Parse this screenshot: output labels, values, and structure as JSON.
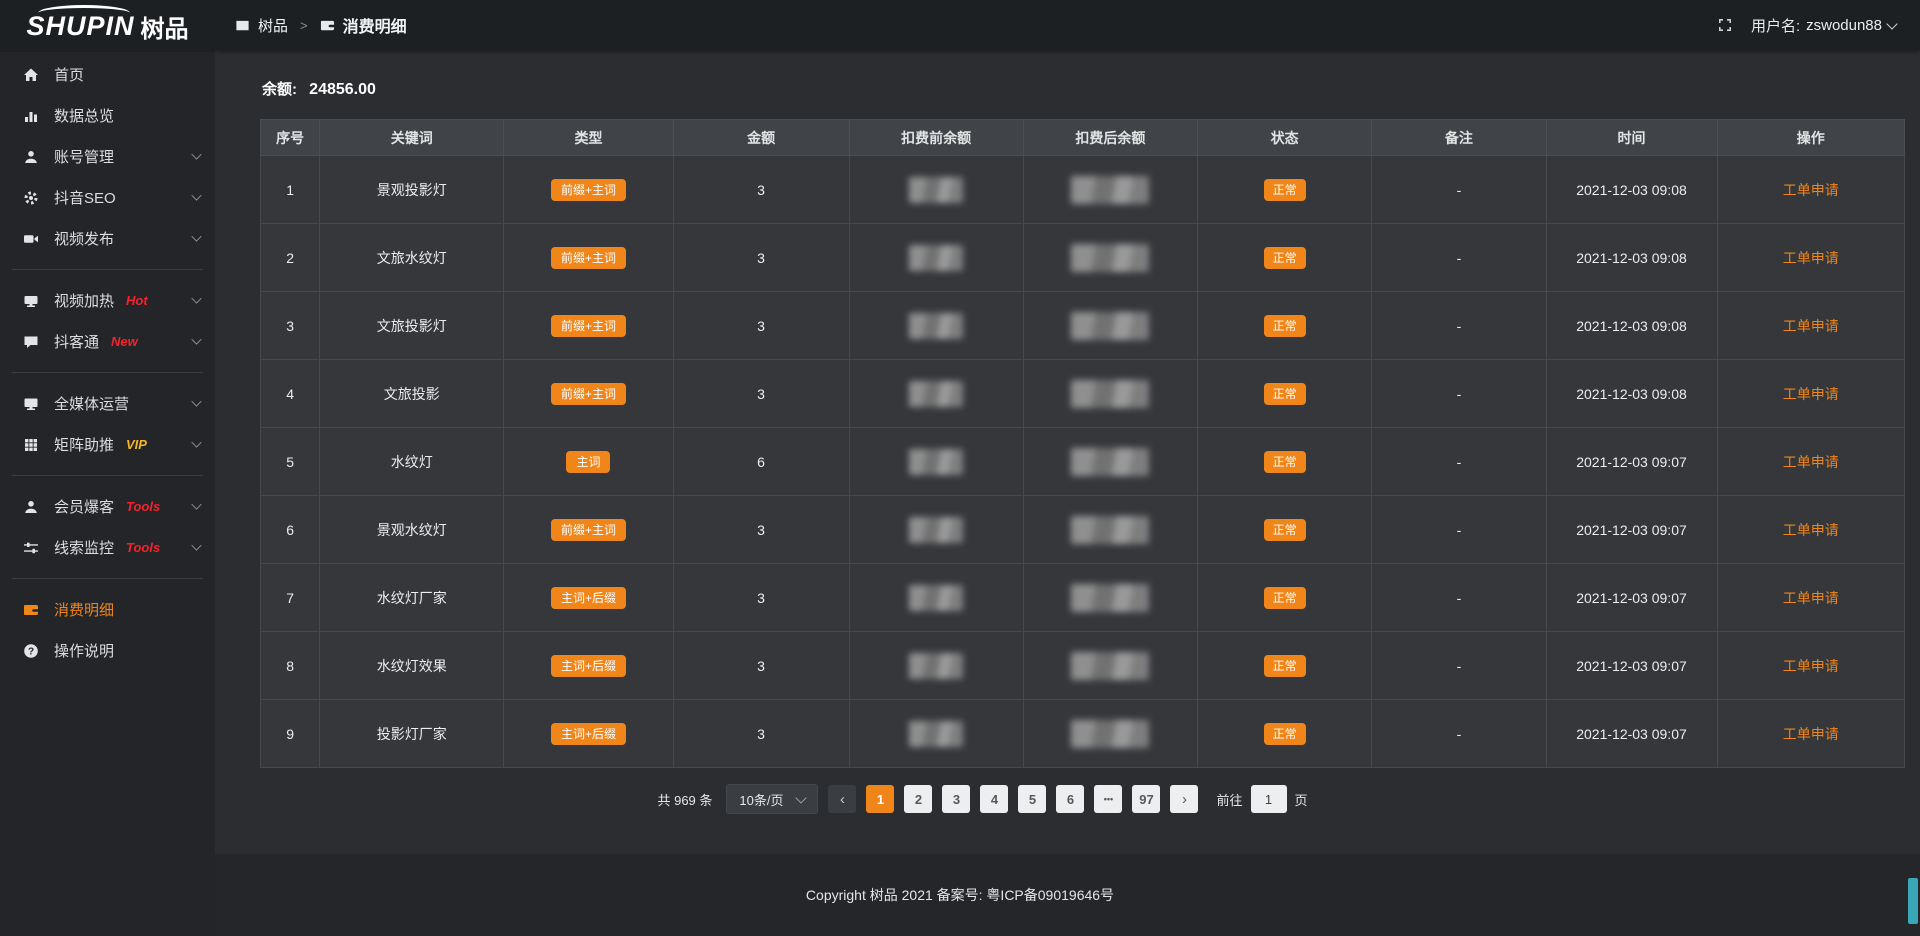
{
  "colors": {
    "accent": "#f08519",
    "hot": "#f5222d",
    "vip": "#f7b52c",
    "sidebar_bg": "#232528"
  },
  "sidebar": {
    "logo_en": "SHUPIN",
    "logo_cn": "树品",
    "items": [
      {
        "id": "home",
        "label": "首页",
        "icon": "home-icon",
        "chevron": false,
        "badge": null,
        "badge_color": null,
        "active": false,
        "divider_after": false
      },
      {
        "id": "data-overview",
        "label": "数据总览",
        "icon": "chart-icon",
        "chevron": false,
        "badge": null,
        "badge_color": null,
        "active": false,
        "divider_after": false
      },
      {
        "id": "account-management",
        "label": "账号管理",
        "icon": "user-icon",
        "chevron": true,
        "badge": null,
        "badge_color": null,
        "active": false,
        "divider_after": false
      },
      {
        "id": "douyin-seo",
        "label": "抖音SEO",
        "icon": "gear-icon",
        "chevron": true,
        "badge": null,
        "badge_color": null,
        "active": false,
        "divider_after": false
      },
      {
        "id": "video-publish",
        "label": "视频发布",
        "icon": "video-icon",
        "chevron": true,
        "badge": null,
        "badge_color": null,
        "active": false,
        "divider_after": true
      },
      {
        "id": "video-heating",
        "label": "视频加热",
        "icon": "screen-icon",
        "chevron": true,
        "badge": "Hot",
        "badge_color": "#f5222d",
        "active": false,
        "divider_after": false
      },
      {
        "id": "doukertong",
        "label": "抖客通",
        "icon": "comment-icon",
        "chevron": true,
        "badge": "New",
        "badge_color": "#f5222d",
        "active": false,
        "divider_after": true
      },
      {
        "id": "omni-media",
        "label": "全媒体运营",
        "icon": "monitor-icon",
        "chevron": true,
        "badge": null,
        "badge_color": null,
        "active": false,
        "divider_after": false
      },
      {
        "id": "matrix-boost",
        "label": "矩阵助推",
        "icon": "grid-icon",
        "chevron": true,
        "badge": "VIP",
        "badge_color": "#f7b52c",
        "active": false,
        "divider_after": true
      },
      {
        "id": "member-burst",
        "label": "会员爆客",
        "icon": "person-icon",
        "chevron": true,
        "badge": "Tools",
        "badge_color": "#f5222d",
        "active": false,
        "divider_after": false
      },
      {
        "id": "lead-monitor",
        "label": "线索监控",
        "icon": "sliders-icon",
        "chevron": true,
        "badge": "Tools",
        "badge_color": "#f5222d",
        "active": false,
        "divider_after": true
      },
      {
        "id": "consumption-details",
        "label": "消费明细",
        "icon": "wallet-icon",
        "chevron": false,
        "badge": null,
        "badge_color": null,
        "active": true,
        "divider_after": false
      },
      {
        "id": "instructions",
        "label": "操作说明",
        "icon": "question-icon",
        "chevron": false,
        "badge": null,
        "badge_color": null,
        "active": false,
        "divider_after": false
      }
    ]
  },
  "topbar": {
    "breadcrumb_root": "树品",
    "breadcrumb_separator": ">",
    "breadcrumb_current": "消费明细",
    "username_label": "用户名:",
    "username": "zswodun88"
  },
  "balance": {
    "label": "余额:",
    "value": "24856.00"
  },
  "table": {
    "headers": [
      "序号",
      "关键词",
      "类型",
      "金额",
      "扣费前余额",
      "扣费后余额",
      "状态",
      "备注",
      "时间",
      "操作"
    ],
    "col_widths": [
      "3.6%",
      "11.2%",
      "10.3%",
      "10.7%",
      "10.6%",
      "10.6%",
      "10.6%",
      "10.6%",
      "10.4%",
      "11.4%"
    ],
    "rows": [
      {
        "index": "1",
        "keyword": "景观投影灯",
        "type": "前缀+主词",
        "amount": "3",
        "pre_balance_blurred": true,
        "post_balance_blurred": true,
        "status": "正常",
        "remark": "-",
        "time": "2021-12-03 09:08",
        "action": "工单申请"
      },
      {
        "index": "2",
        "keyword": "文旅水纹灯",
        "type": "前缀+主词",
        "amount": "3",
        "pre_balance_blurred": true,
        "post_balance_blurred": true,
        "status": "正常",
        "remark": "-",
        "time": "2021-12-03 09:08",
        "action": "工单申请"
      },
      {
        "index": "3",
        "keyword": "文旅投影灯",
        "type": "前缀+主词",
        "amount": "3",
        "pre_balance_blurred": true,
        "post_balance_blurred": true,
        "status": "正常",
        "remark": "-",
        "time": "2021-12-03 09:08",
        "action": "工单申请"
      },
      {
        "index": "4",
        "keyword": "文旅投影",
        "type": "前缀+主词",
        "amount": "3",
        "pre_balance_blurred": true,
        "post_balance_blurred": true,
        "status": "正常",
        "remark": "-",
        "time": "2021-12-03 09:08",
        "action": "工单申请"
      },
      {
        "index": "5",
        "keyword": "水纹灯",
        "type": "主词",
        "amount": "6",
        "pre_balance_blurred": true,
        "post_balance_blurred": true,
        "status": "正常",
        "remark": "-",
        "time": "2021-12-03 09:07",
        "action": "工单申请"
      },
      {
        "index": "6",
        "keyword": "景观水纹灯",
        "type": "前缀+主词",
        "amount": "3",
        "pre_balance_blurred": true,
        "post_balance_blurred": true,
        "status": "正常",
        "remark": "-",
        "time": "2021-12-03 09:07",
        "action": "工单申请"
      },
      {
        "index": "7",
        "keyword": "水纹灯厂家",
        "type": "主词+后缀",
        "amount": "3",
        "pre_balance_blurred": true,
        "post_balance_blurred": true,
        "status": "正常",
        "remark": "-",
        "time": "2021-12-03 09:07",
        "action": "工单申请"
      },
      {
        "index": "8",
        "keyword": "水纹灯效果",
        "type": "主词+后缀",
        "amount": "3",
        "pre_balance_blurred": true,
        "post_balance_blurred": true,
        "status": "正常",
        "remark": "-",
        "time": "2021-12-03 09:07",
        "action": "工单申请"
      },
      {
        "index": "9",
        "keyword": "投影灯厂家",
        "type": "主词+后缀",
        "amount": "3",
        "pre_balance_blurred": true,
        "post_balance_blurred": true,
        "status": "正常",
        "remark": "-",
        "time": "2021-12-03 09:07",
        "action": "工单申请"
      }
    ]
  },
  "pagination": {
    "total_label": "共 969 条",
    "page_size": "10条/页",
    "prev_symbol": "‹",
    "next_symbol": "›",
    "pages": [
      "1",
      "2",
      "3",
      "4",
      "5",
      "6",
      "•••",
      "97"
    ],
    "active_page": "1",
    "goto_label": "前往",
    "goto_value": "1",
    "goto_suffix": "页"
  },
  "footer": {
    "copyright": "Copyright 树品 2021 备案号: 粤ICP备09019646号"
  }
}
